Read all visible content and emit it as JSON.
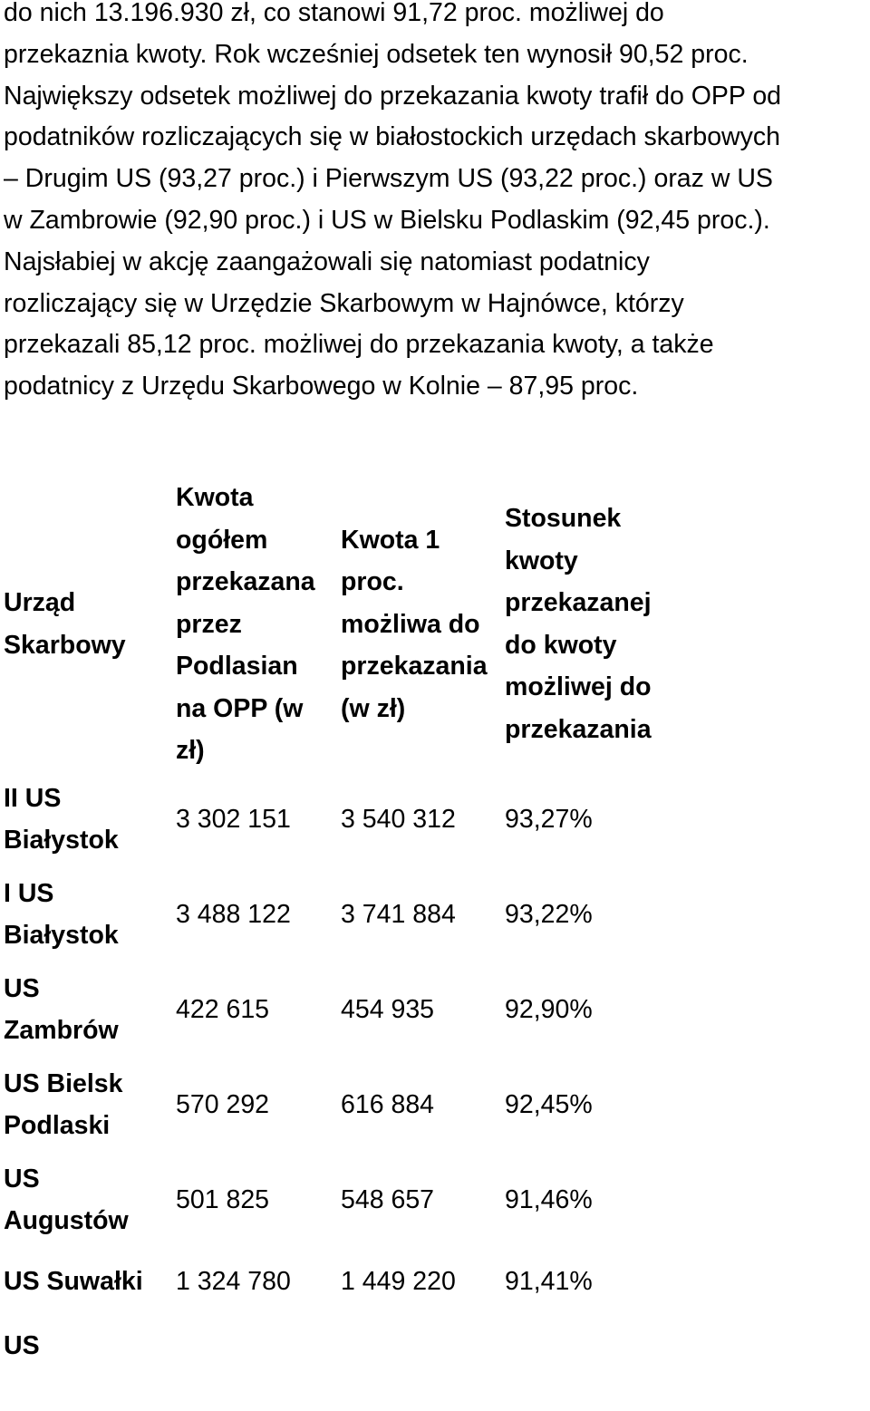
{
  "paragraph": {
    "lines": [
      "do nich 13.196.930 zł, co stanowi 91,72 proc. możliwej do",
      "przekaznia kwoty. Rok wcześniej odsetek ten wynosił 90,52 proc.",
      "Największy odsetek możliwej do przekazania kwoty trafił do OPP od",
      "podatników rozliczających się w białostockich urzędach skarbowych",
      "– Drugim US (93,27 proc.) i Pierwszym US (93,22 proc.) oraz w US",
      "w Zambrowie (92,90 proc.) i US w Bielsku Podlaskim (92,45 proc.).",
      "Najsłabiej w akcję zaangażowali się natomiast podatnicy",
      "rozliczający się w Urzędzie Skarbowym w Hajnówce, którzy",
      "przekazali 85,12 proc. możliwej do przekazania kwoty, a także",
      "podatnicy z Urzędu Skarbowego w Kolnie – 87,95 proc."
    ]
  },
  "table": {
    "headers": [
      {
        "lines": [
          "Urząd",
          "Skarbowy"
        ]
      },
      {
        "lines": [
          "Kwota",
          "ogółem",
          "przekazana",
          "przez",
          "Podlasian",
          "na OPP (w",
          "zł)"
        ]
      },
      {
        "lines": [
          "Kwota 1",
          "proc.",
          "możliwa do",
          "przekazania",
          "(w zł)"
        ]
      },
      {
        "lines": [
          "Stosunek",
          "kwoty",
          "przekazanej",
          "do kwoty",
          "możliwej do",
          "przekazania"
        ]
      }
    ],
    "rows": [
      {
        "office": [
          "II US",
          "Białystok"
        ],
        "total": "3 302 151",
        "possible": "3 540 312",
        "ratio": "93,27%"
      },
      {
        "office": [
          "I US",
          "Białystok"
        ],
        "total": "3 488 122",
        "possible": "3 741 884",
        "ratio": "93,22%"
      },
      {
        "office": [
          "US",
          "Zambrów"
        ],
        "total": "422 615",
        "possible": "454 935",
        "ratio": "92,90%"
      },
      {
        "office": [
          "US Bielsk",
          "Podlaski"
        ],
        "total": "570 292",
        "possible": "616 884",
        "ratio": "92,45%"
      },
      {
        "office": [
          "US",
          "Augustów"
        ],
        "total": "501 825",
        "possible": "548 657",
        "ratio": "91,46%"
      },
      {
        "office": [
          "US Suwałki"
        ],
        "total": "1 324 780",
        "possible": "1 449 220",
        "ratio": "91,41%"
      },
      {
        "office": [
          "US"
        ],
        "total": "",
        "possible": "",
        "ratio": ""
      }
    ]
  }
}
